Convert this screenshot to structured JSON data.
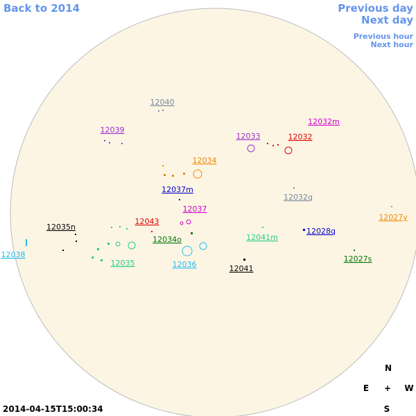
{
  "nav": {
    "back": "Back to 2014",
    "previous_day": "Previous day",
    "next_day": "Next day",
    "previous_hour": "Previous hour",
    "next_hour": "Next hour"
  },
  "regions": [
    {
      "label": "12040",
      "color": "#778899"
    },
    {
      "label": "12039",
      "color": "#9932cc"
    },
    {
      "label": "12033",
      "color": "#9932cc"
    },
    {
      "label": "12032m",
      "color": "#cc00cc"
    },
    {
      "label": "12032",
      "color": "#dd0000"
    },
    {
      "label": "12034",
      "color": "#ee8800"
    },
    {
      "label": "12037m",
      "color": "#0000cc"
    },
    {
      "label": "12032q",
      "color": "#778899"
    },
    {
      "label": "12027y",
      "color": "#ee8800"
    },
    {
      "label": "12037",
      "color": "#cc00cc"
    },
    {
      "label": "12043",
      "color": "#dd0000"
    },
    {
      "label": "12035n",
      "color": "#000000"
    },
    {
      "label": "12028q",
      "color": "#0000cc"
    },
    {
      "label": "12034o",
      "color": "#007700"
    },
    {
      "label": "12041m",
      "color": "#22cc88"
    },
    {
      "label": "12038",
      "color": "#22bbee"
    },
    {
      "label": "12035",
      "color": "#22cc88"
    },
    {
      "label": "12036",
      "color": "#22bbee"
    },
    {
      "label": "12041",
      "color": "#000000"
    },
    {
      "label": "12027s",
      "color": "#007700"
    }
  ],
  "compass": {
    "north": "N",
    "east": "E",
    "center": "+",
    "west": "W",
    "south": "S"
  },
  "timestamp": "2014-04-15T15:00:34"
}
